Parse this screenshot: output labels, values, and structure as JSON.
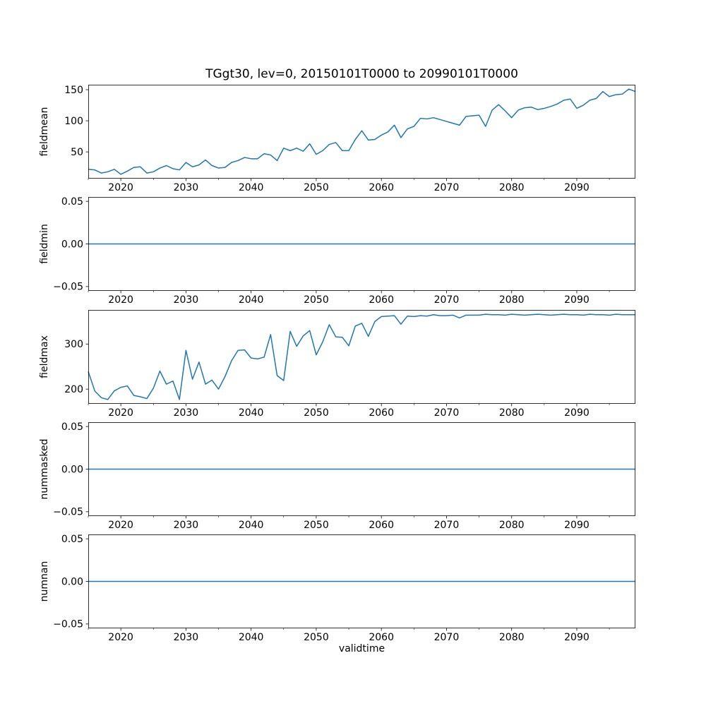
{
  "figure": {
    "title": "TGgt30, lev=0, 20150101T0000 to 20990101T0000",
    "xlabel": "validtime",
    "line_color": "#1f77b4",
    "axis_color": "#000000",
    "background_color": "#ffffff"
  },
  "x_axis": {
    "label": "validtime",
    "start_year": 2015,
    "end_year": 2099,
    "major_ticks": [
      2020,
      2030,
      2040,
      2050,
      2060,
      2070,
      2080,
      2090
    ],
    "major_tick_labels": [
      "2020",
      "2030",
      "2040",
      "2050",
      "2060",
      "2070",
      "2080",
      "2090"
    ],
    "minor_ticks": [
      2015,
      2025,
      2035,
      2045,
      2055,
      2065,
      2075,
      2085,
      2095
    ]
  },
  "chart_data": [
    {
      "type": "line",
      "name": "fieldmean",
      "ylabel": "fieldmean",
      "x_start": 2015,
      "x_step": 1,
      "values": [
        22,
        21,
        16,
        18,
        22,
        14,
        19,
        25,
        26,
        16,
        18,
        24,
        28,
        23,
        21,
        33,
        26,
        29,
        37,
        28,
        24,
        25,
        33,
        36,
        41,
        39,
        39,
        47,
        45,
        36,
        56,
        52,
        56,
        51,
        63,
        46,
        52,
        62,
        65,
        52,
        52,
        70,
        84,
        69,
        70,
        77,
        82,
        93,
        73,
        87,
        91,
        104,
        103,
        105,
        102,
        99,
        96,
        93,
        107,
        108,
        109,
        91,
        117,
        126,
        116,
        105,
        117,
        121,
        122,
        118,
        120,
        123,
        127,
        133,
        135,
        120,
        125,
        133,
        136,
        147,
        139,
        142,
        143,
        151,
        147
      ],
      "ylim": [
        7.15,
        157.85
      ],
      "yticks": [
        {
          "v": 50,
          "label": "50"
        },
        {
          "v": 100,
          "label": "100"
        },
        {
          "v": 150,
          "label": "150"
        }
      ]
    },
    {
      "type": "line",
      "name": "fieldmin",
      "ylabel": "fieldmin",
      "constant_value": 0,
      "ylim": [
        -0.055,
        0.055
      ],
      "yticks": [
        {
          "v": -0.05,
          "label": "−0.05"
        },
        {
          "v": 0,
          "label": "0.00"
        },
        {
          "v": 0.05,
          "label": "0.05"
        }
      ]
    },
    {
      "type": "line",
      "name": "fieldmax",
      "ylabel": "fieldmax",
      "x_start": 2015,
      "x_step": 1,
      "values": [
        239,
        196,
        181,
        177,
        196,
        204,
        207,
        186,
        183,
        179,
        202,
        240,
        211,
        218,
        177,
        286,
        222,
        260,
        211,
        220,
        200,
        228,
        263,
        286,
        287,
        269,
        267,
        271,
        321,
        230,
        219,
        328,
        295,
        318,
        330,
        276,
        305,
        343,
        316,
        315,
        296,
        340,
        346,
        317,
        350,
        361,
        362,
        363,
        344,
        362,
        361,
        363,
        362,
        365,
        363,
        363,
        364,
        358,
        364,
        364,
        364,
        366,
        365,
        365,
        364,
        366,
        365,
        364,
        365,
        366,
        365,
        364,
        365,
        366,
        365,
        365,
        364,
        366,
        365,
        365,
        364,
        366,
        365,
        365,
        365
      ],
      "ylim": [
        167.55,
        375.45
      ],
      "yticks": [
        {
          "v": 200,
          "label": "200"
        },
        {
          "v": 300,
          "label": "300"
        }
      ]
    },
    {
      "type": "line",
      "name": "nummasked",
      "ylabel": "nummasked",
      "constant_value": 0,
      "ylim": [
        -0.055,
        0.055
      ],
      "yticks": [
        {
          "v": -0.05,
          "label": "−0.05"
        },
        {
          "v": 0,
          "label": "0.00"
        },
        {
          "v": 0.05,
          "label": "0.05"
        }
      ]
    },
    {
      "type": "line",
      "name": "numnan",
      "ylabel": "numnan",
      "constant_value": 0,
      "ylim": [
        -0.055,
        0.055
      ],
      "yticks": [
        {
          "v": -0.05,
          "label": "−0.05"
        },
        {
          "v": 0,
          "label": "0.00"
        },
        {
          "v": 0.05,
          "label": "0.05"
        }
      ]
    }
  ]
}
